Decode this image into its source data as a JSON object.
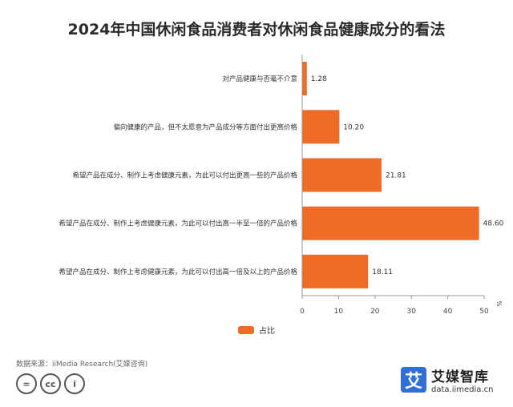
{
  "chart_data": {
    "type": "bar",
    "orientation": "horizontal",
    "title": "2024年中国休闲食品消费者对休闲食品健康成分的看法",
    "categories": [
      "对产品健康与否毫不介意",
      "偏向健康的产品，但不太愿意为产品成分等方面付出更高价格",
      "希望产品在成分、制作上考虑健康元素，为此可以付出更高一些的产品价格",
      "希望产品在成分、制作上考虑健康元素，为此可以付出高一半至一倍的产品价格",
      "希望产品在成分、制作上考虑健康元素，为此可以付出高一倍及以上的产品价格"
    ],
    "series": [
      {
        "name": "占比",
        "values": [
          1.28,
          10.2,
          21.81,
          48.6,
          18.11
        ],
        "color": "#f06b25"
      }
    ],
    "value_labels": [
      "1.28",
      "10.20",
      "21.81",
      "48.60",
      "18.11"
    ],
    "xlim": [
      0,
      50
    ],
    "ticks": [
      "0",
      "10",
      "20",
      "30",
      "40",
      "50"
    ],
    "unit": "%",
    "grid": false,
    "legend": "bottom-center"
  },
  "source": "数据来源：iiMedia Research(艾媒咨询)",
  "license_icons": [
    "=",
    "cc",
    "i"
  ],
  "brand": {
    "logo_char": "艾",
    "name": "艾媒智库",
    "url": "data.iimedia.cn",
    "color": "#2f6fd6"
  }
}
